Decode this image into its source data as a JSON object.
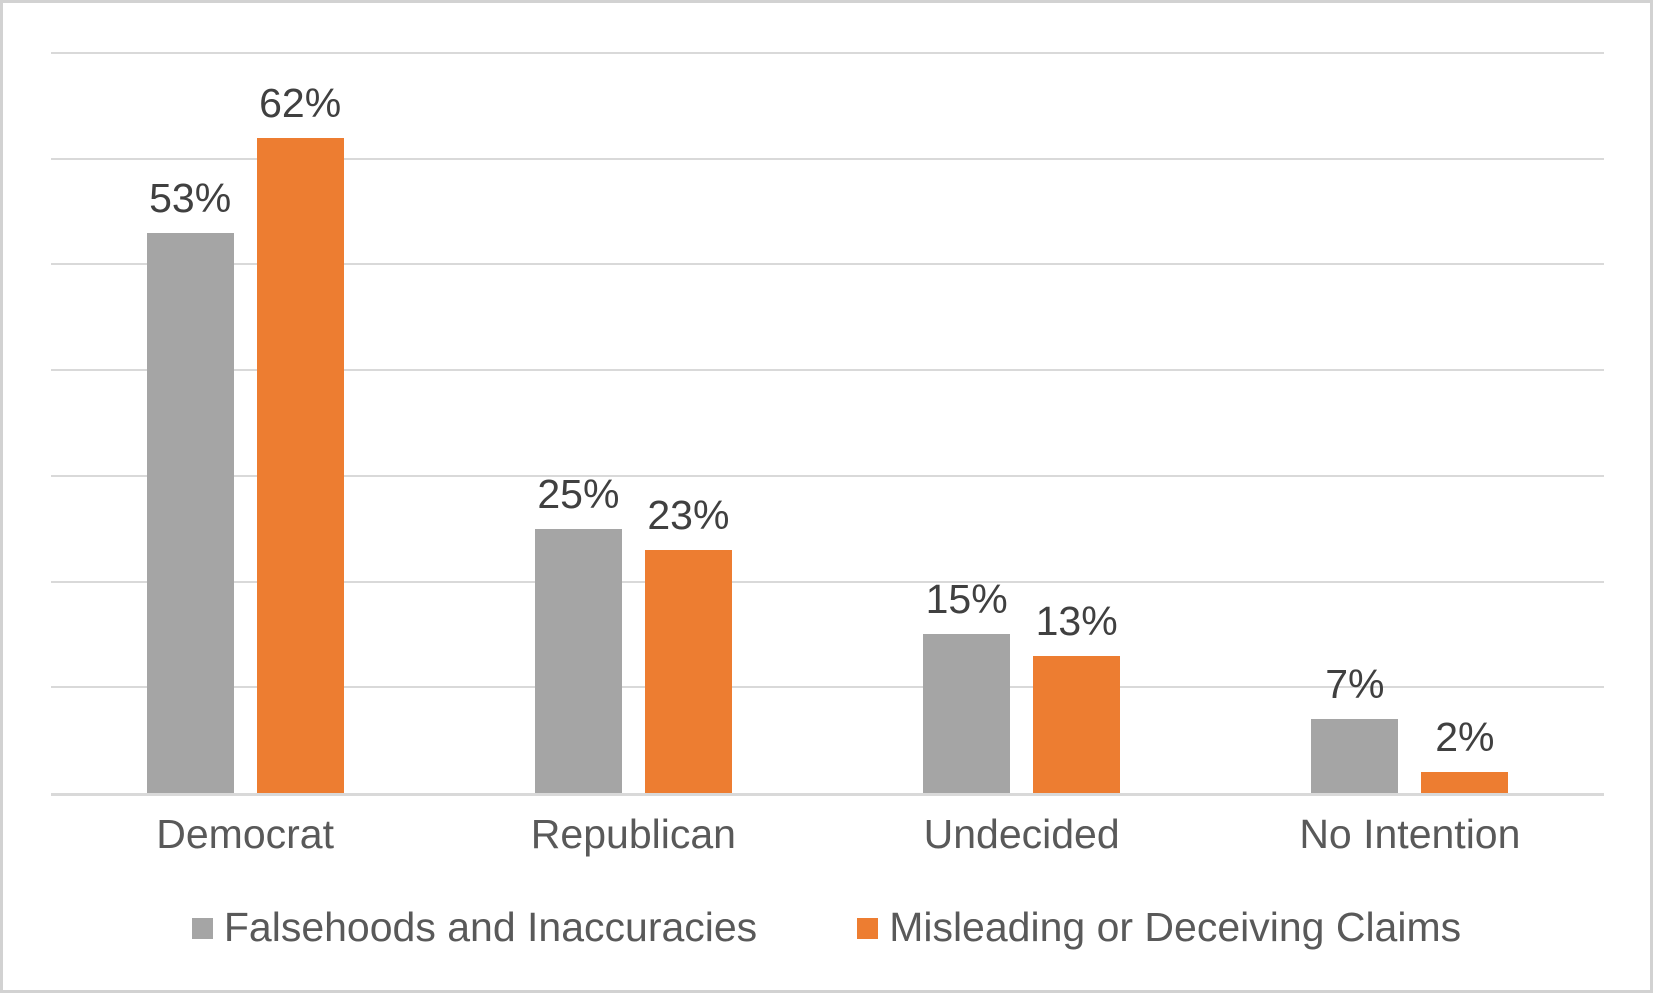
{
  "chart_data": {
    "type": "bar",
    "categories": [
      "Democrat",
      "Republican",
      "Undecided",
      "No Intention"
    ],
    "series": [
      {
        "name": "Falsehoods and Inaccuracies",
        "color": "#A5A5A5",
        "values": [
          53,
          25,
          15,
          7
        ],
        "data_labels": [
          "53%",
          "25%",
          "15%",
          "7%"
        ]
      },
      {
        "name": "Misleading or Deceiving Claims",
        "color": "#ED7D31",
        "values": [
          62,
          23,
          13,
          2
        ],
        "data_labels": [
          "62%",
          "23%",
          "13%",
          "2%"
        ]
      }
    ],
    "title": "",
    "xlabel": "",
    "ylabel": "",
    "ylim": [
      0,
      70
    ],
    "gridline_interval": 10,
    "grid": true,
    "gridline_color": "#D9D9D9",
    "axis_tick_labels_visible": false,
    "legend_position": "bottom",
    "data_label_color": "#404040",
    "axis_text_color": "#595959"
  }
}
